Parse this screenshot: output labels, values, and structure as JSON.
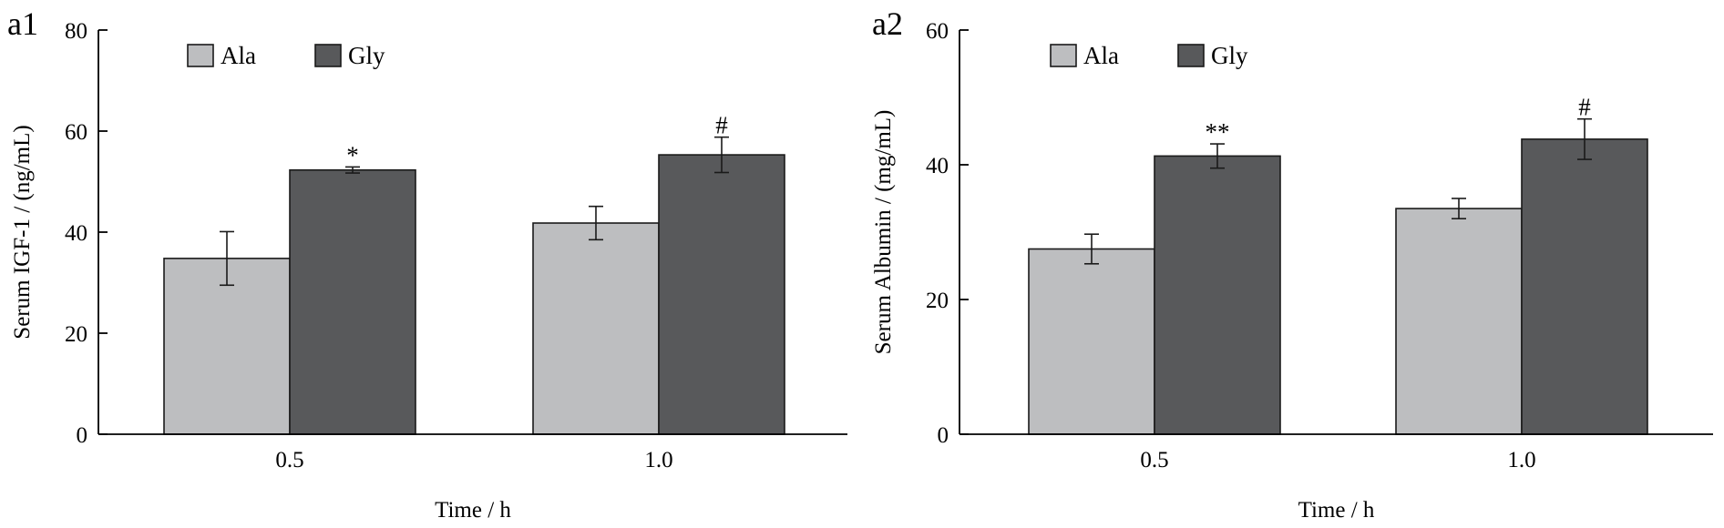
{
  "chart_data": [
    {
      "type": "bar",
      "panel": "a1",
      "xlabel": "Time / h",
      "ylabel": "Serum IGF-1 / (ng/mL)",
      "ylim": [
        0,
        80
      ],
      "yticks": [
        0,
        20,
        40,
        60,
        80
      ],
      "categories": [
        "0.5",
        "1.0"
      ],
      "legend_position": "top-left",
      "grid": false,
      "series": [
        {
          "name": "Ala",
          "color": "#bdbec0",
          "values": [
            34.8,
            41.8
          ],
          "errors": [
            5.3,
            3.3
          ],
          "markers": [
            "",
            ""
          ]
        },
        {
          "name": "Gly",
          "color": "#58595b",
          "values": [
            52.3,
            55.3
          ],
          "errors": [
            0.6,
            3.5
          ],
          "markers": [
            "*",
            "#"
          ]
        }
      ]
    },
    {
      "type": "bar",
      "panel": "a2",
      "xlabel": "Time / h",
      "ylabel": "Serum Albumin / (mg/mL)",
      "ylim": [
        0,
        60
      ],
      "yticks": [
        0,
        20,
        40,
        60
      ],
      "categories": [
        "0.5",
        "1.0"
      ],
      "legend_position": "top-left",
      "grid": false,
      "series": [
        {
          "name": "Ala",
          "color": "#bdbec0",
          "values": [
            27.5,
            33.5
          ],
          "errors": [
            2.2,
            1.5
          ],
          "markers": [
            "",
            ""
          ]
        },
        {
          "name": "Gly",
          "color": "#58595b",
          "values": [
            41.3,
            43.8
          ],
          "errors": [
            1.8,
            3.0
          ],
          "markers": [
            "**",
            "#"
          ]
        }
      ]
    }
  ]
}
